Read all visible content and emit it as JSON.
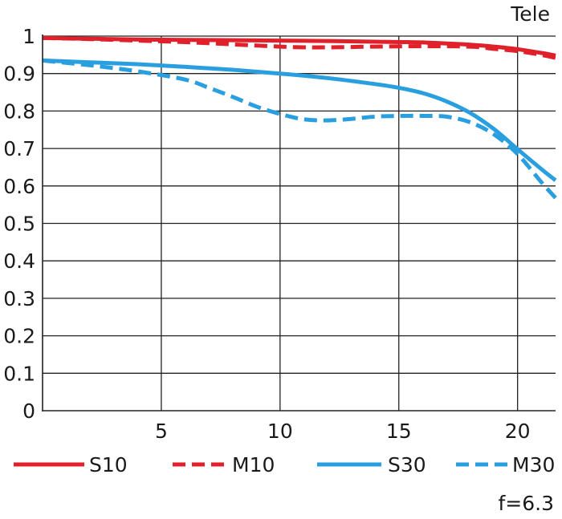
{
  "chart_data": {
    "type": "line",
    "title": "Tele",
    "note": "f=6.3",
    "xlabel": "",
    "ylabel": "",
    "xlim": [
      0,
      21.6
    ],
    "ylim": [
      0,
      1
    ],
    "x_ticks": [
      5,
      10,
      15,
      20
    ],
    "y_ticks": [
      0,
      0.1,
      0.2,
      0.3,
      0.4,
      0.5,
      0.6,
      0.7,
      0.8,
      0.9,
      1
    ],
    "y_tick_labels": [
      "0",
      "0.1",
      "0.2",
      "0.3",
      "0.4",
      "0.5",
      "0.6",
      "0.7",
      "0.8",
      "0.9",
      "1"
    ],
    "grid": true,
    "legend_position": "bottom",
    "series": [
      {
        "name": "S10",
        "color": "#e0202a",
        "dash": "solid",
        "x": [
          0,
          2,
          4,
          6,
          8,
          10,
          12,
          14,
          16,
          18,
          19,
          20,
          21,
          21.6
        ],
        "y": [
          0.995,
          0.993,
          0.991,
          0.99,
          0.989,
          0.988,
          0.987,
          0.985,
          0.983,
          0.977,
          0.972,
          0.965,
          0.955,
          0.948
        ]
      },
      {
        "name": "M10",
        "color": "#e0202a",
        "dash": "dashed",
        "x": [
          0,
          2,
          4,
          6,
          8,
          10,
          11,
          12,
          14,
          16,
          18,
          19,
          20,
          21,
          21.6
        ],
        "y": [
          0.995,
          0.992,
          0.988,
          0.984,
          0.978,
          0.972,
          0.97,
          0.97,
          0.972,
          0.973,
          0.972,
          0.966,
          0.96,
          0.95,
          0.942
        ]
      },
      {
        "name": "S30",
        "color": "#2a9fe0",
        "dash": "solid",
        "x": [
          0,
          2,
          4,
          6,
          8,
          10,
          12,
          14,
          15,
          16,
          17,
          18,
          19,
          20,
          21,
          21.6
        ],
        "y": [
          0.935,
          0.93,
          0.925,
          0.918,
          0.91,
          0.9,
          0.888,
          0.872,
          0.862,
          0.848,
          0.826,
          0.795,
          0.752,
          0.698,
          0.645,
          0.615
        ]
      },
      {
        "name": "M30",
        "color": "#2a9fe0",
        "dash": "dashed",
        "x": [
          0,
          2,
          4,
          6,
          7,
          8,
          9,
          10,
          11,
          12,
          13,
          14,
          15,
          16,
          17,
          18,
          19,
          20,
          21,
          21.6
        ],
        "y": [
          0.935,
          0.922,
          0.906,
          0.884,
          0.862,
          0.838,
          0.812,
          0.792,
          0.778,
          0.775,
          0.779,
          0.785,
          0.787,
          0.787,
          0.785,
          0.77,
          0.738,
          0.685,
          0.61,
          0.568
        ]
      }
    ]
  }
}
